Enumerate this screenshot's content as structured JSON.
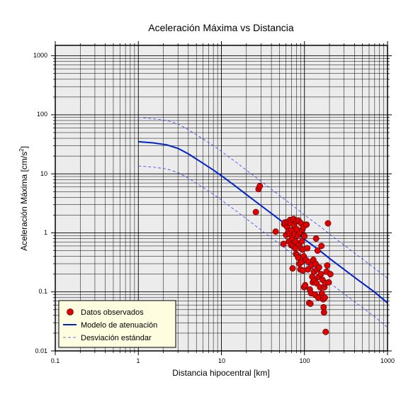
{
  "chart_data": {
    "type": "scatter",
    "title": "Aceleración Máxima vs Distancia",
    "xlabel": "Distancia hipocentral [km]",
    "ylabel": "Aceleración Máxima [cm/s",
    "ylabel_sup": "2",
    "ylabel_close": "]",
    "xscale": "log",
    "yscale": "log",
    "xlim": [
      0.1,
      1000
    ],
    "ylim": [
      0.01,
      1500
    ],
    "x_ticks": [
      "0.1",
      "1",
      "10",
      "100",
      "1000"
    ],
    "y_ticks": [
      "0.01",
      "0.1",
      "1",
      "10",
      "100",
      "1000"
    ],
    "grid": true,
    "legend_position": "bottom-left",
    "colors": {
      "background": "#ececec",
      "points": "#e00000",
      "model": "#0022cc",
      "stddev": "#3344ee",
      "legend_bg": "#fffde0"
    },
    "legend": [
      {
        "label": "Datos observados",
        "kind": "point"
      },
      {
        "label": "Modelo de atenuación",
        "kind": "line"
      },
      {
        "label": "Desviación estándar",
        "kind": "dashed"
      }
    ],
    "series": [
      {
        "name": "Datos observados",
        "kind": "scatter",
        "points": [
          [
            26,
            2.25
          ],
          [
            28,
            5.5
          ],
          [
            29,
            6.2
          ],
          [
            45,
            1.05
          ],
          [
            56,
            0.65
          ],
          [
            57,
            1.4
          ],
          [
            58,
            1.5
          ],
          [
            60,
            0.92
          ],
          [
            62,
            1.25
          ],
          [
            63,
            1.52
          ],
          [
            64,
            1.05
          ],
          [
            65,
            0.72
          ],
          [
            66,
            0.95
          ],
          [
            67,
            1.65
          ],
          [
            68,
            1.48
          ],
          [
            69,
            0.62
          ],
          [
            70,
            1.1
          ],
          [
            71,
            0.82
          ],
          [
            72,
            0.25
          ],
          [
            73,
            0.6
          ],
          [
            74,
            1.72
          ],
          [
            75,
            1.35
          ],
          [
            76,
            0.95
          ],
          [
            77,
            0.55
          ],
          [
            78,
            0.72
          ],
          [
            79,
            0.44
          ],
          [
            80,
            1.58
          ],
          [
            81,
            1.15
          ],
          [
            82,
            0.42
          ],
          [
            83,
            0.9
          ],
          [
            84,
            0.38
          ],
          [
            85,
            1.62
          ],
          [
            86,
            0.62
          ],
          [
            87,
            0.3
          ],
          [
            88,
            1.02
          ],
          [
            89,
            0.24
          ],
          [
            90,
            0.55
          ],
          [
            91,
            1.45
          ],
          [
            92,
            0.32
          ],
          [
            93,
            0.72
          ],
          [
            94,
            1.12
          ],
          [
            95,
            0.52
          ],
          [
            96,
            0.23
          ],
          [
            97,
            1.25
          ],
          [
            98,
            0.4
          ],
          [
            99,
            0.12
          ],
          [
            100,
            0.88
          ],
          [
            102,
            0.13
          ],
          [
            104,
            0.35
          ],
          [
            106,
            1.38
          ],
          [
            108,
            0.55
          ],
          [
            110,
            0.24
          ],
          [
            112,
            0.32
          ],
          [
            114,
            0.065
          ],
          [
            116,
            0.11
          ],
          [
            118,
            0.063
          ],
          [
            120,
            0.095
          ],
          [
            122,
            0.28
          ],
          [
            124,
            0.18
          ],
          [
            126,
            0.145
          ],
          [
            128,
            0.35
          ],
          [
            130,
            0.22
          ],
          [
            132,
            0.155
          ],
          [
            134,
            0.09
          ],
          [
            136,
            0.3
          ],
          [
            138,
            0.8
          ],
          [
            140,
            0.14
          ],
          [
            142,
            0.24
          ],
          [
            144,
            0.5
          ],
          [
            146,
            0.08
          ],
          [
            148,
            0.18
          ],
          [
            150,
            0.26
          ],
          [
            154,
            0.12
          ],
          [
            158,
            0.2
          ],
          [
            160,
            0.6
          ],
          [
            162,
            0.095
          ],
          [
            165,
            0.16
          ],
          [
            168,
            0.075
          ],
          [
            170,
            0.055
          ],
          [
            172,
            0.045
          ],
          [
            174,
            0.12
          ],
          [
            176,
            0.08
          ],
          [
            178,
            0.14
          ],
          [
            180,
            0.021
          ],
          [
            184,
            0.22
          ],
          [
            188,
            0.28
          ],
          [
            192,
            1.45
          ],
          [
            196,
            0.145
          ],
          [
            205,
            0.2
          ]
        ]
      },
      {
        "name": "Modelo de atenuación",
        "kind": "line",
        "points": [
          [
            1,
            35
          ],
          [
            1.5,
            33.5
          ],
          [
            2.2,
            31
          ],
          [
            3,
            27
          ],
          [
            4,
            21.8
          ],
          [
            6,
            15.1
          ],
          [
            8,
            11.6
          ],
          [
            10,
            9.3
          ],
          [
            15,
            6.1
          ],
          [
            20,
            4.46
          ],
          [
            30,
            2.9
          ],
          [
            50,
            1.68
          ],
          [
            70,
            1.16
          ],
          [
            100,
            0.78
          ],
          [
            150,
            0.51
          ],
          [
            200,
            0.37
          ],
          [
            300,
            0.24
          ],
          [
            500,
            0.14
          ],
          [
            700,
            0.099
          ],
          [
            1000,
            0.065
          ]
        ]
      },
      {
        "name": "Desviación estándar",
        "kind": "dashed",
        "points": [
          [
            1,
            90
          ],
          [
            1.5,
            86
          ],
          [
            2.2,
            80
          ],
          [
            3,
            70
          ],
          [
            4,
            56
          ],
          [
            6,
            39
          ],
          [
            8,
            30
          ],
          [
            10,
            24
          ],
          [
            15,
            15.8
          ],
          [
            20,
            11.5
          ],
          [
            30,
            7.5
          ],
          [
            50,
            4.3
          ],
          [
            70,
            3.0
          ],
          [
            100,
            2.0
          ],
          [
            150,
            1.32
          ],
          [
            200,
            0.96
          ],
          [
            300,
            0.62
          ],
          [
            500,
            0.36
          ],
          [
            700,
            0.25
          ],
          [
            1000,
            0.17
          ]
        ]
      },
      {
        "name": "Desviación estándar",
        "kind": "dashed",
        "points": [
          [
            1,
            13.6
          ],
          [
            1.5,
            13.0
          ],
          [
            2.2,
            12.1
          ],
          [
            3,
            10.5
          ],
          [
            4,
            8.5
          ],
          [
            6,
            5.9
          ],
          [
            8,
            4.5
          ],
          [
            10,
            3.6
          ],
          [
            15,
            2.36
          ],
          [
            20,
            1.73
          ],
          [
            30,
            1.12
          ],
          [
            50,
            0.65
          ],
          [
            70,
            0.45
          ],
          [
            100,
            0.3
          ],
          [
            150,
            0.197
          ],
          [
            200,
            0.143
          ],
          [
            300,
            0.093
          ],
          [
            500,
            0.054
          ],
          [
            700,
            0.038
          ],
          [
            1000,
            0.025
          ]
        ]
      }
    ]
  }
}
